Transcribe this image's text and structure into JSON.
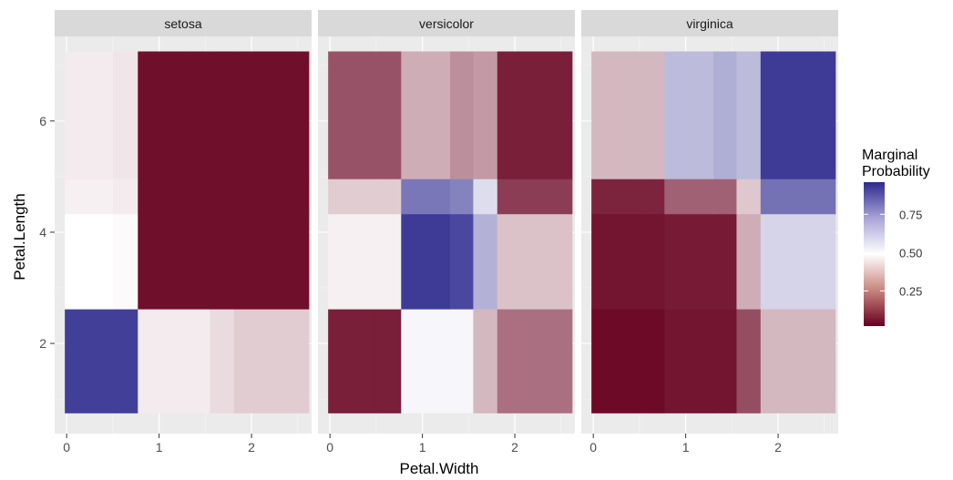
{
  "chart_data": {
    "type": "heatmap",
    "xlabel": "Petal.Width",
    "ylabel": "Petal.Length",
    "x_ticks": [
      0,
      1,
      2
    ],
    "y_ticks": [
      2,
      4,
      6
    ],
    "xlim": [
      -0.13,
      2.65
    ],
    "ylim": [
      0.38,
      7.52
    ],
    "grid": true,
    "x_edges": [
      -0.02,
      0.5,
      0.77,
      1.3,
      1.55,
      1.81,
      2.62
    ],
    "y_edges": [
      0.75,
      2.62,
      4.33,
      4.96,
      7.25
    ],
    "legend": {
      "title_line1": "Marginal",
      "title_line2": "Probability",
      "position": "right",
      "ticks": [
        0.25,
        0.5,
        0.75
      ],
      "tick_labels": [
        "0.25",
        "0.50",
        "0.75"
      ],
      "range": [
        0.02,
        0.96
      ]
    },
    "colors": {
      "low": "#67001F",
      "mid": "#FFFFFF",
      "high": "#2D2A8E"
    },
    "panels": [
      {
        "name": "setosa",
        "values": [
          [
            0.95,
            0.95,
            0.46,
            0.46,
            0.43,
            0.4
          ],
          [
            0.5,
            0.49,
            0.03,
            0.03,
            0.03,
            0.03
          ],
          [
            0.47,
            0.46,
            0.03,
            0.03,
            0.03,
            0.03
          ],
          [
            0.46,
            0.45,
            0.03,
            0.03,
            0.03,
            0.03
          ]
        ]
      },
      {
        "name": "versicolor",
        "values": [
          [
            0.06,
            0.06,
            0.52,
            0.52,
            0.36,
            0.22
          ],
          [
            0.47,
            0.47,
            0.96,
            0.93,
            0.68,
            0.38
          ],
          [
            0.4,
            0.4,
            0.82,
            0.79,
            0.58,
            0.12
          ],
          [
            0.16,
            0.16,
            0.34,
            0.28,
            0.3,
            0.06
          ]
        ]
      },
      {
        "name": "virginica",
        "values": [
          [
            0.02,
            0.02,
            0.04,
            0.04,
            0.15,
            0.36
          ],
          [
            0.04,
            0.04,
            0.05,
            0.05,
            0.34,
            0.6
          ],
          [
            0.07,
            0.07,
            0.19,
            0.19,
            0.39,
            0.83
          ],
          [
            0.36,
            0.36,
            0.66,
            0.69,
            0.66,
            0.96
          ]
        ]
      }
    ]
  }
}
